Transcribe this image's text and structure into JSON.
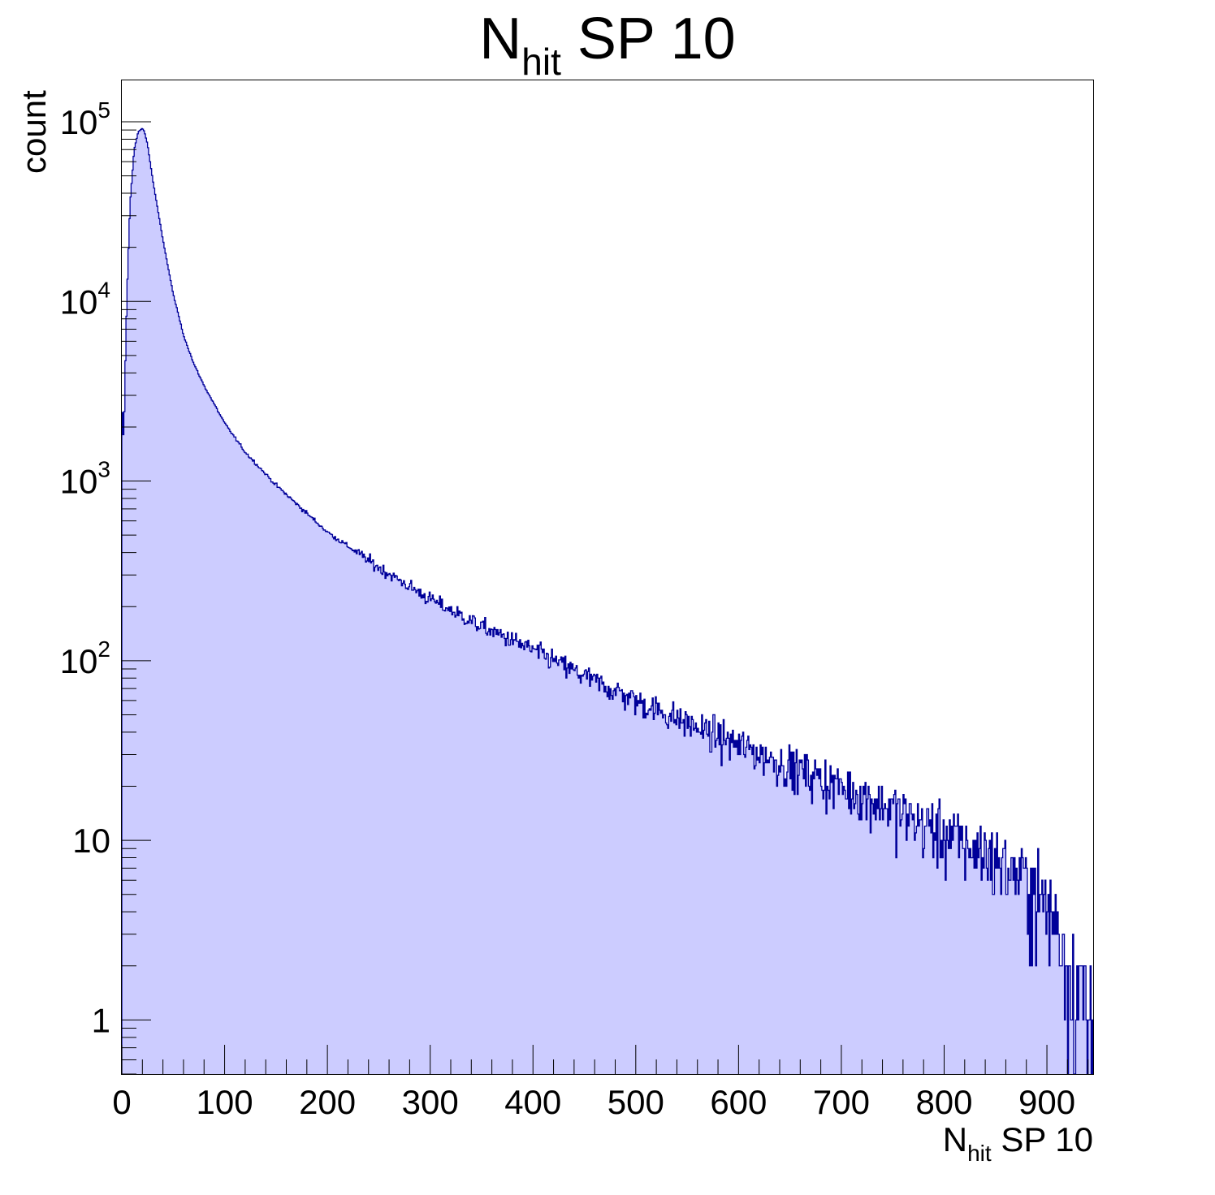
{
  "chart_data": {
    "type": "area",
    "title": {
      "main": "N",
      "sub": "hit",
      "rest": " SP 10"
    },
    "xlabel": {
      "main": "N",
      "sub": "hit",
      "rest": " SP 10"
    },
    "ylabel": "count",
    "x_range": [
      0,
      945
    ],
    "y_range": [
      0.5,
      170000
    ],
    "y_scale": "log",
    "x_ticks": [
      "0",
      "100",
      "200",
      "300",
      "400",
      "500",
      "600",
      "700",
      "800",
      "900"
    ],
    "x_tick_values": [
      0,
      100,
      200,
      300,
      400,
      500,
      600,
      700,
      800,
      900
    ],
    "y_ticks": [
      {
        "value": 1,
        "base": "1",
        "exp": ""
      },
      {
        "value": 10,
        "base": "10",
        "exp": ""
      },
      {
        "value": 100,
        "base": "10",
        "exp": "2"
      },
      {
        "value": 1000,
        "base": "10",
        "exp": "3"
      },
      {
        "value": 10000,
        "base": "10",
        "exp": "4"
      },
      {
        "value": 100000,
        "base": "10",
        "exp": "5"
      }
    ],
    "bin_width": 1,
    "fill_color": "#ccccff",
    "line_color": "#000099",
    "series": [
      {
        "profile_x": [
          0,
          1,
          2,
          3,
          5,
          8,
          12,
          16,
          20,
          22,
          25,
          30,
          40,
          50,
          60,
          70,
          80,
          100,
          120,
          150,
          200,
          250,
          300,
          350,
          400,
          450,
          500,
          550,
          600,
          650,
          700,
          750,
          800,
          850,
          880,
          900,
          915,
          930,
          945
        ],
        "profile_y": [
          3000,
          1900,
          1700,
          3500,
          11000,
          35000,
          70000,
          88000,
          92000,
          88000,
          75000,
          48000,
          22000,
          11000,
          6500,
          4500,
          3400,
          2100,
          1450,
          950,
          520,
          330,
          220,
          155,
          115,
          82,
          60,
          45,
          34,
          26,
          20,
          15,
          11,
          8,
          6,
          4.5,
          3,
          1.5,
          0.8
        ]
      }
    ]
  }
}
